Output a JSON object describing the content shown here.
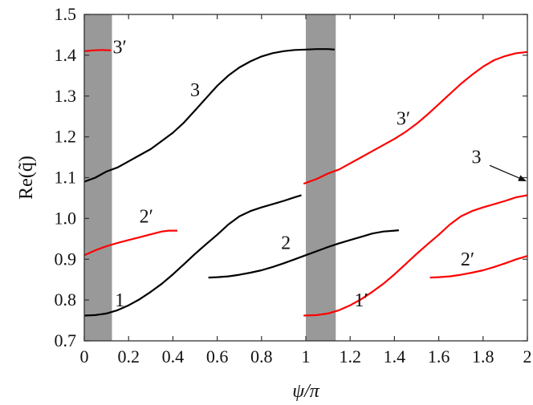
{
  "chart_data": {
    "type": "line",
    "xlabel": "ψ/π",
    "ylabel": "Re(q̃)",
    "xlim": [
      0,
      2
    ],
    "ylim": [
      0.7,
      1.5
    ],
    "xticks": [
      0,
      0.2,
      0.4,
      0.6,
      0.8,
      1,
      1.2,
      1.4,
      1.6,
      1.8,
      2
    ],
    "xtick_labels": [
      "0",
      "0.2",
      "0.4",
      "0.6",
      "0.8",
      "1",
      "1.2",
      "1.4",
      "1.6",
      "1.8",
      "2"
    ],
    "yticks": [
      0.7,
      0.8,
      0.9,
      1.0,
      1.1,
      1.2,
      1.3,
      1.4,
      1.5
    ],
    "ytick_labels": [
      "0.7",
      "0.8",
      "0.9",
      "1.0",
      "1.1",
      "1.2",
      "1.3",
      "1.4",
      "1.5"
    ],
    "grid": false,
    "shaded_bands": [
      {
        "x": [
          0,
          0.125
        ],
        "color": "#999999"
      },
      {
        "x": [
          1,
          1.135
        ],
        "color": "#999999"
      }
    ],
    "series": [
      {
        "color": "#000000",
        "x": [
          0,
          0.05,
          0.1,
          0.15,
          0.2,
          0.25,
          0.3,
          0.35,
          0.4,
          0.45,
          0.5,
          0.55,
          0.6,
          0.65,
          0.7,
          0.75,
          0.8,
          0.85,
          0.9,
          0.95,
          1.0,
          1.05,
          1.1,
          1.13
        ],
        "y": [
          1.09,
          1.1,
          1.115,
          1.125,
          1.14,
          1.155,
          1.17,
          1.19,
          1.21,
          1.235,
          1.265,
          1.295,
          1.325,
          1.35,
          1.37,
          1.385,
          1.397,
          1.405,
          1.41,
          1.413,
          1.414,
          1.415,
          1.415,
          1.414
        ]
      },
      {
        "color": "#000000",
        "x": [
          0,
          0.05,
          0.1,
          0.15,
          0.2,
          0.25,
          0.3,
          0.35,
          0.4,
          0.45,
          0.5,
          0.55,
          0.6,
          0.65,
          0.7,
          0.75,
          0.8,
          0.85,
          0.9,
          0.95,
          0.98
        ],
        "y": [
          0.762,
          0.763,
          0.767,
          0.775,
          0.787,
          0.802,
          0.82,
          0.84,
          0.863,
          0.888,
          0.913,
          0.937,
          0.96,
          0.985,
          1.005,
          1.018,
          1.027,
          1.035,
          1.043,
          1.052,
          1.057
        ]
      },
      {
        "color": "#000000",
        "x": [
          0.56,
          0.6,
          0.65,
          0.7,
          0.75,
          0.8,
          0.85,
          0.9,
          0.95,
          1.0,
          1.05,
          1.1,
          1.15,
          1.2,
          1.25,
          1.3,
          1.35,
          1.4,
          1.42
        ],
        "y": [
          0.855,
          0.856,
          0.858,
          0.862,
          0.867,
          0.873,
          0.881,
          0.89,
          0.9,
          0.91,
          0.92,
          0.93,
          0.939,
          0.947,
          0.955,
          0.963,
          0.968,
          0.97,
          0.971
        ]
      },
      {
        "color": "#ff0000",
        "x": [
          0,
          0.04,
          0.08,
          0.12
        ],
        "y": [
          1.41,
          1.412,
          1.413,
          1.412
        ]
      },
      {
        "color": "#ff0000",
        "x": [
          0,
          0.05,
          0.1,
          0.15,
          0.2,
          0.25,
          0.3,
          0.35,
          0.38,
          0.42
        ],
        "y": [
          0.91,
          0.922,
          0.932,
          0.94,
          0.947,
          0.954,
          0.961,
          0.968,
          0.97,
          0.97
        ]
      },
      {
        "color": "#ff0000",
        "x": [
          0.99,
          1.05,
          1.1,
          1.15,
          1.2,
          1.25,
          1.3,
          1.35,
          1.4,
          1.45,
          1.5,
          1.55,
          1.6,
          1.65,
          1.7,
          1.75,
          1.8,
          1.85,
          1.9,
          1.95,
          2.0
        ],
        "y": [
          1.085,
          1.097,
          1.11,
          1.12,
          1.135,
          1.15,
          1.165,
          1.18,
          1.195,
          1.212,
          1.232,
          1.255,
          1.28,
          1.305,
          1.33,
          1.352,
          1.372,
          1.388,
          1.398,
          1.405,
          1.408
        ]
      },
      {
        "color": "#ff0000",
        "x": [
          0.99,
          1.05,
          1.1,
          1.15,
          1.2,
          1.25,
          1.3,
          1.35,
          1.4,
          1.45,
          1.5,
          1.55,
          1.6,
          1.65,
          1.7,
          1.75,
          1.8,
          1.85,
          1.9,
          1.95,
          2.0
        ],
        "y": [
          0.762,
          0.763,
          0.767,
          0.775,
          0.787,
          0.802,
          0.82,
          0.84,
          0.863,
          0.888,
          0.913,
          0.937,
          0.96,
          0.985,
          1.005,
          1.018,
          1.027,
          1.035,
          1.043,
          1.052,
          1.057
        ]
      },
      {
        "color": "#ff0000",
        "x": [
          1.56,
          1.6,
          1.65,
          1.7,
          1.75,
          1.8,
          1.85,
          1.9,
          1.95,
          2.0
        ],
        "y": [
          0.855,
          0.856,
          0.858,
          0.862,
          0.867,
          0.873,
          0.881,
          0.89,
          0.9,
          0.908
        ]
      }
    ],
    "annotations": [
      {
        "text": "3′",
        "x": 0.16,
        "y": 1.405
      },
      {
        "text": "3",
        "x": 0.5,
        "y": 1.3
      },
      {
        "text": "2′",
        "x": 0.28,
        "y": 0.99
      },
      {
        "text": "1",
        "x": 0.16,
        "y": 0.785
      },
      {
        "text": "2",
        "x": 0.91,
        "y": 0.925
      },
      {
        "text": "3′",
        "x": 1.44,
        "y": 1.23
      },
      {
        "text": "1′",
        "x": 1.25,
        "y": 0.785
      },
      {
        "text": "2′",
        "x": 1.73,
        "y": 0.885
      },
      {
        "text": "3",
        "x": 1.77,
        "y": 1.135
      }
    ],
    "arrows": [
      {
        "from": [
          1.83,
          1.13
        ],
        "to": [
          2.0,
          1.09
        ]
      }
    ]
  }
}
